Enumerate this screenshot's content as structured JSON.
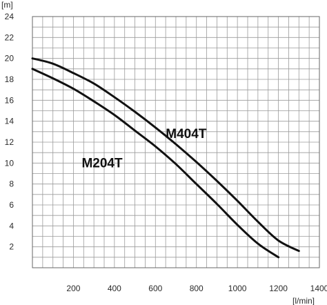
{
  "chart_data": {
    "type": "line",
    "xlabel": "[l/min]",
    "ylabel": "[m]",
    "xlim": [
      0,
      1400
    ],
    "ylim": [
      0,
      24
    ],
    "xticks": [
      200,
      400,
      600,
      800,
      1000,
      1200,
      1400
    ],
    "yticks": [
      2,
      4,
      6,
      8,
      10,
      12,
      14,
      16,
      18,
      20,
      22,
      24
    ],
    "x_minor_step": 50,
    "y_minor_step": 1,
    "grid": true,
    "line_color": "#111111",
    "grid_color": "#9a9a9a",
    "series": [
      {
        "name": "M404T",
        "x": [
          0,
          100,
          200,
          300,
          400,
          500,
          600,
          700,
          800,
          900,
          1000,
          1100,
          1200,
          1300
        ],
        "y": [
          20,
          19.5,
          18.6,
          17.6,
          16.3,
          14.9,
          13.4,
          11.8,
          10.1,
          8.3,
          6.4,
          4.4,
          2.6,
          1.6
        ]
      },
      {
        "name": "M204T",
        "x": [
          0,
          100,
          200,
          300,
          400,
          500,
          600,
          700,
          800,
          900,
          1000,
          1100,
          1200
        ],
        "y": [
          19,
          18.1,
          17.1,
          15.9,
          14.6,
          13.1,
          11.6,
          9.9,
          8.0,
          6.1,
          4.1,
          2.3,
          1.0
        ]
      }
    ]
  }
}
